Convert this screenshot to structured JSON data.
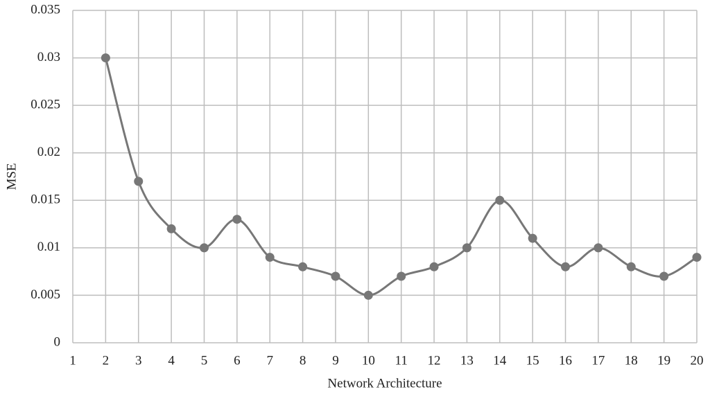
{
  "chart_data": {
    "type": "line",
    "xlabel": "Network Architecture",
    "ylabel": "MSE",
    "x": [
      2,
      3,
      4,
      5,
      6,
      7,
      8,
      9,
      10,
      11,
      12,
      13,
      14,
      15,
      16,
      17,
      18,
      19,
      20
    ],
    "series": [
      {
        "name": "MSE",
        "color": "#777777",
        "values": [
          0.03,
          0.017,
          0.012,
          0.01,
          0.013,
          0.009,
          0.008,
          0.007,
          0.005,
          0.007,
          0.008,
          0.01,
          0.015,
          0.011,
          0.008,
          0.01,
          0.008,
          0.007,
          0.009
        ]
      }
    ],
    "xlim": [
      1,
      20
    ],
    "xticks": [
      1,
      2,
      3,
      4,
      5,
      6,
      7,
      8,
      9,
      10,
      11,
      12,
      13,
      14,
      15,
      16,
      17,
      18,
      19,
      20
    ],
    "ylim": [
      0,
      0.035
    ],
    "yticks": [
      0,
      0.005,
      0.01,
      0.015,
      0.02,
      0.025,
      0.03,
      0.035
    ],
    "grid": true,
    "smooth": true
  }
}
